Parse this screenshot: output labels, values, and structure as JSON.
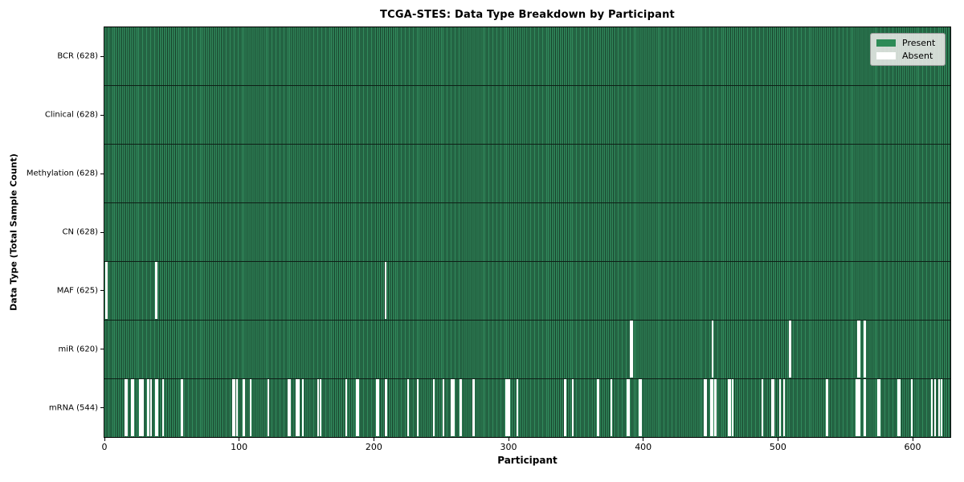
{
  "chart_data": {
    "type": "heatmap",
    "title": "TCGA-STES: Data Type Breakdown by Participant",
    "xlabel": "Participant",
    "ylabel": "Data Type (Total Sample Count)",
    "x_ticks": [
      0,
      100,
      200,
      300,
      400,
      500,
      600
    ],
    "x_range": [
      0,
      628
    ],
    "n_participants": 628,
    "grid": false,
    "legend_position": "upper right",
    "colors": {
      "present": "#2e8b57",
      "absent": "#ffffff",
      "column_edge": "#173f2a",
      "row_separator": "#0e1f16",
      "legend_bg": "#ebebe8"
    },
    "legend": [
      {
        "label": "Present",
        "color": "#2e8b57"
      },
      {
        "label": "Absent",
        "color": "#ffffff"
      }
    ],
    "rows": [
      {
        "label": "BCR (628)",
        "data_type": "BCR",
        "total": 628,
        "absent_participants": []
      },
      {
        "label": "Clinical (628)",
        "data_type": "Clinical",
        "total": 628,
        "absent_participants": []
      },
      {
        "label": "Methylation (628)",
        "data_type": "Methylation",
        "total": 628,
        "absent_participants": []
      },
      {
        "label": "CN (628)",
        "data_type": "CN",
        "total": 628,
        "absent_participants": []
      },
      {
        "label": "MAF (625)",
        "data_type": "MAF",
        "total": 625,
        "absent_participants": [
          1,
          38,
          208
        ]
      },
      {
        "label": "miR (620)",
        "data_type": "miR",
        "total": 620,
        "absent_participants": [
          390,
          391,
          451,
          508,
          509,
          559,
          560,
          564
        ]
      },
      {
        "label": "mRNA (544)",
        "data_type": "mRNA",
        "total": 544,
        "absent_participants": [
          15,
          16,
          20,
          21,
          26,
          27,
          28,
          32,
          34,
          38,
          39,
          43,
          57,
          95,
          96,
          98,
          103,
          108,
          121,
          136,
          137,
          142,
          143,
          144,
          147,
          158,
          160,
          179,
          187,
          188,
          202,
          203,
          208,
          209,
          225,
          232,
          244,
          251,
          257,
          258,
          259,
          264,
          273,
          274,
          298,
          299,
          300,
          306,
          341,
          342,
          347,
          366,
          376,
          388,
          389,
          397,
          398,
          445,
          446,
          450,
          451,
          453,
          463,
          464,
          466,
          488,
          495,
          496,
          501,
          504,
          536,
          558,
          559,
          560,
          564,
          574,
          575,
          589,
          590,
          599,
          614,
          616,
          619,
          621
        ]
      }
    ]
  }
}
